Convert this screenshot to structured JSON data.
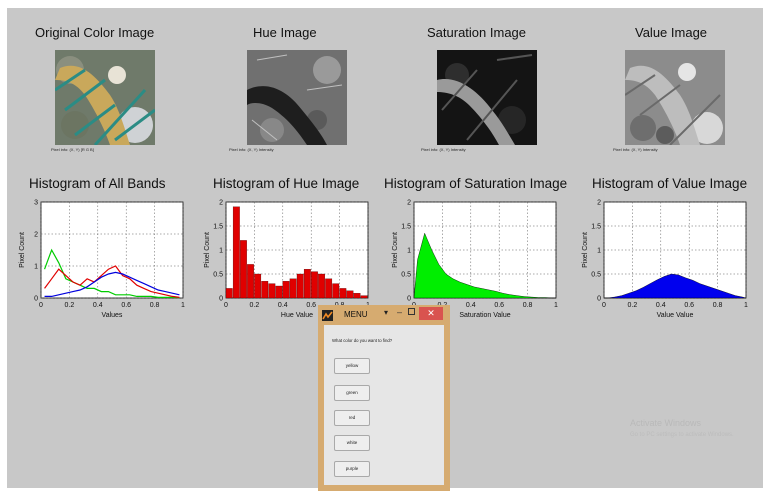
{
  "image_titles": [
    "Original Color Image",
    "Hue Image",
    "Saturation Image",
    "Value Image"
  ],
  "pixel_info": [
    "Pixel info: (X, Y) [R G B]",
    "Pixel info: (X, Y) Intensity",
    "Pixel info: (X, Y) Intensity",
    "Pixel info: (X, Y) Intensity"
  ],
  "histogram_titles": [
    "Histogram of All Bands",
    "Histogram of Hue Image",
    "Histogram of Saturation Image",
    "Histogram of Value Image"
  ],
  "colors": {
    "figure_bg": "#c8c8c8",
    "menu_frame": "#d6ab70",
    "close_button": "#d9534f"
  },
  "chart_data": [
    {
      "type": "line",
      "title": "Histogram of All Bands",
      "xlabel": "Values",
      "ylabel": "Pixel Count",
      "xlim": [
        0,
        1
      ],
      "ylim": [
        0,
        3
      ],
      "xticks": [
        "0",
        "0.2",
        "0.4",
        "0.6",
        "0.8",
        "1"
      ],
      "yticks": [
        "0",
        "1",
        "2",
        "3"
      ],
      "grid": true,
      "series": [
        {
          "color": "#00cc00",
          "values": [
            0.9,
            1.5,
            1.1,
            0.6,
            0.5,
            0.4,
            0.3,
            0.3,
            0.2,
            0.2,
            0.1,
            0.1,
            0.1,
            0.05,
            0.05,
            0.05,
            0.02,
            0.02,
            0.02,
            0.01
          ]
        },
        {
          "color": "#e00000",
          "values": [
            0.3,
            0.6,
            0.9,
            0.7,
            0.5,
            0.4,
            0.6,
            0.5,
            0.7,
            0.9,
            1.0,
            0.7,
            0.6,
            0.4,
            0.3,
            0.2,
            0.15,
            0.1,
            0.05,
            0.02
          ]
        },
        {
          "color": "#0000dd",
          "values": [
            0.05,
            0.05,
            0.1,
            0.15,
            0.2,
            0.25,
            0.35,
            0.5,
            0.65,
            0.75,
            0.8,
            0.75,
            0.65,
            0.55,
            0.45,
            0.35,
            0.25,
            0.2,
            0.15,
            0.1
          ]
        }
      ]
    },
    {
      "type": "bar",
      "title": "Histogram of Hue Image",
      "xlabel": "Hue Value",
      "ylabel": "Pixel Count",
      "xlim": [
        0,
        1
      ],
      "ylim": [
        0,
        2
      ],
      "xticks": [
        "0",
        "0.2",
        "0.4",
        "0.6",
        "0.8",
        "1"
      ],
      "yticks": [
        "0",
        "0.5",
        "1",
        "1.5",
        "2"
      ],
      "grid": true,
      "series": [
        {
          "color": "#e00000",
          "values": [
            0.2,
            1.9,
            1.2,
            0.7,
            0.5,
            0.35,
            0.3,
            0.25,
            0.35,
            0.4,
            0.5,
            0.6,
            0.55,
            0.5,
            0.4,
            0.3,
            0.2,
            0.15,
            0.1,
            0.05
          ]
        }
      ]
    },
    {
      "type": "area",
      "title": "Histogram of Saturation Image",
      "xlabel": "Saturation Value",
      "ylabel": "Pixel Count",
      "xlim": [
        0,
        1
      ],
      "ylim": [
        0,
        2
      ],
      "xticks": [
        "0",
        "0.2",
        "0.4",
        "0.6",
        "0.8",
        "1"
      ],
      "yticks": [
        "0",
        "0.5",
        "1",
        "1.5",
        "2"
      ],
      "grid": true,
      "series": [
        {
          "color": "#00ee00",
          "values": [
            0.8,
            1.35,
            1.0,
            0.7,
            0.5,
            0.4,
            0.33,
            0.28,
            0.23,
            0.2,
            0.17,
            0.14,
            0.1,
            0.07,
            0.05,
            0.03,
            0.02,
            0.01,
            0.01,
            0.0
          ]
        }
      ]
    },
    {
      "type": "area",
      "title": "Histogram of Value Image",
      "xlabel": "Value Value",
      "ylabel": "Pixel Count",
      "xlim": [
        0,
        1
      ],
      "ylim": [
        0,
        2
      ],
      "xticks": [
        "0",
        "0.2",
        "0.4",
        "0.6",
        "0.8",
        "1"
      ],
      "yticks": [
        "0",
        "0.5",
        "1",
        "1.5",
        "2"
      ],
      "grid": true,
      "series": [
        {
          "color": "#0000ee",
          "values": [
            0.0,
            0.02,
            0.05,
            0.1,
            0.15,
            0.22,
            0.3,
            0.38,
            0.45,
            0.5,
            0.48,
            0.42,
            0.37,
            0.3,
            0.25,
            0.2,
            0.15,
            0.1,
            0.05,
            0.02
          ]
        }
      ]
    }
  ],
  "menu": {
    "title": "MENU",
    "question": "What color do you want to find?",
    "options": [
      "yellow",
      "green",
      "red",
      "white",
      "purple"
    ]
  },
  "watermark": {
    "line1": "Activate Windows",
    "line2": "Go to PC settings to activate Windows."
  }
}
